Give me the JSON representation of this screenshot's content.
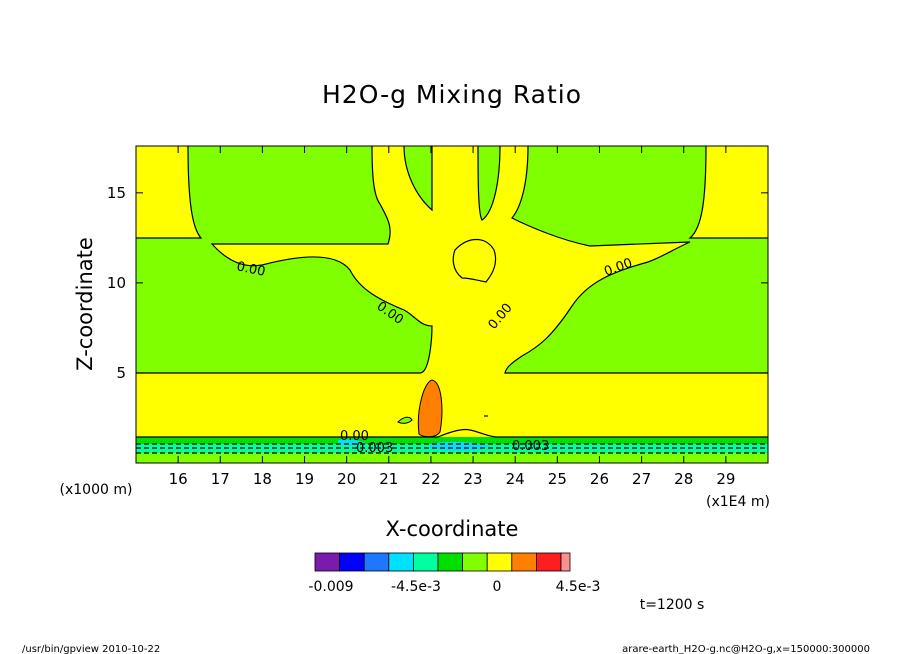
{
  "chart_data": {
    "type": "contour",
    "title": "H2O-g Mixing Ratio",
    "xlabel": "X-coordinate",
    "ylabel": "Z-coordinate",
    "x_unit_left": "(x1000 m)",
    "x_unit_right": "(x1E4 m)",
    "xlim": [
      15.0,
      30.0
    ],
    "ylim": [
      0.0,
      17.6
    ],
    "xticks": [
      "16",
      "17",
      "18",
      "19",
      "20",
      "21",
      "22",
      "23",
      "24",
      "25",
      "26",
      "27",
      "28",
      "29"
    ],
    "yticks": [
      "5",
      "10",
      "15"
    ],
    "contour_labels": [
      "0.00",
      "0.00",
      "0.00",
      "0.00",
      "0.00",
      "0.003",
      "0.003"
    ],
    "colorbar": {
      "colors": [
        "#7a1bb0",
        "#0000ff",
        "#1e78ff",
        "#00e0ff",
        "#00ffa0",
        "#00e000",
        "#7fff00",
        "#ffff00",
        "#ff8000",
        "#ff1e1e",
        "#ff9090"
      ],
      "tick_labels": [
        "-0.009",
        "-4.5e-3",
        "0",
        "4.5e-3"
      ]
    },
    "time_label": "t=1200 s"
  },
  "footer": {
    "left": "/usr/bin/gpview   2010-10-22",
    "right": "arare-earth_H2O-g.nc@H2O-g,x=150000:300000"
  }
}
